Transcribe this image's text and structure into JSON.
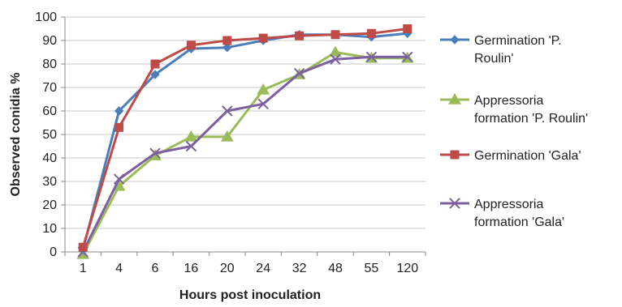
{
  "chart_data": {
    "type": "line",
    "title": "",
    "xlabel": "Hours post inoculation",
    "ylabel": "Observed conidia %",
    "categories": [
      "1",
      "4",
      "6",
      "16",
      "20",
      "24",
      "32",
      "48",
      "55",
      "120"
    ],
    "ylim": [
      0,
      100
    ],
    "yticks": [
      0,
      10,
      20,
      30,
      40,
      50,
      60,
      70,
      80,
      90,
      100
    ],
    "grid": "horizontal",
    "legend_position": "right",
    "series": [
      {
        "name": "Germination 'P. Roulin'",
        "legend_lines": [
          "Germination 'P.",
          "Roulin'"
        ],
        "marker": "diamond",
        "color": "#4a7ebb",
        "values": [
          1,
          60,
          75.5,
          86.5,
          87,
          90,
          92.5,
          92.5,
          91.5,
          93
        ]
      },
      {
        "name": "Appressoria formation 'P. Roulin'",
        "legend_lines": [
          "Appressoria",
          "formation 'P. Roulin'"
        ],
        "marker": "triangle",
        "color": "#9bbb59",
        "values": [
          -1,
          28,
          41,
          49,
          49,
          69,
          75.5,
          85,
          82.5,
          82.5
        ]
      },
      {
        "name": "Germination 'Gala'",
        "legend_lines": [
          "Germination 'Gala'"
        ],
        "marker": "square",
        "color": "#be4b48",
        "values": [
          2,
          53,
          80,
          88,
          90,
          91,
          92,
          92.5,
          93,
          95
        ]
      },
      {
        "name": "Appressoria formation 'Gala'",
        "legend_lines": [
          "Appressoria",
          "formation 'Gala'"
        ],
        "marker": "x",
        "color": "#7d60a0",
        "values": [
          0,
          31,
          42,
          45,
          60,
          63,
          76,
          82,
          83,
          83
        ]
      }
    ]
  }
}
